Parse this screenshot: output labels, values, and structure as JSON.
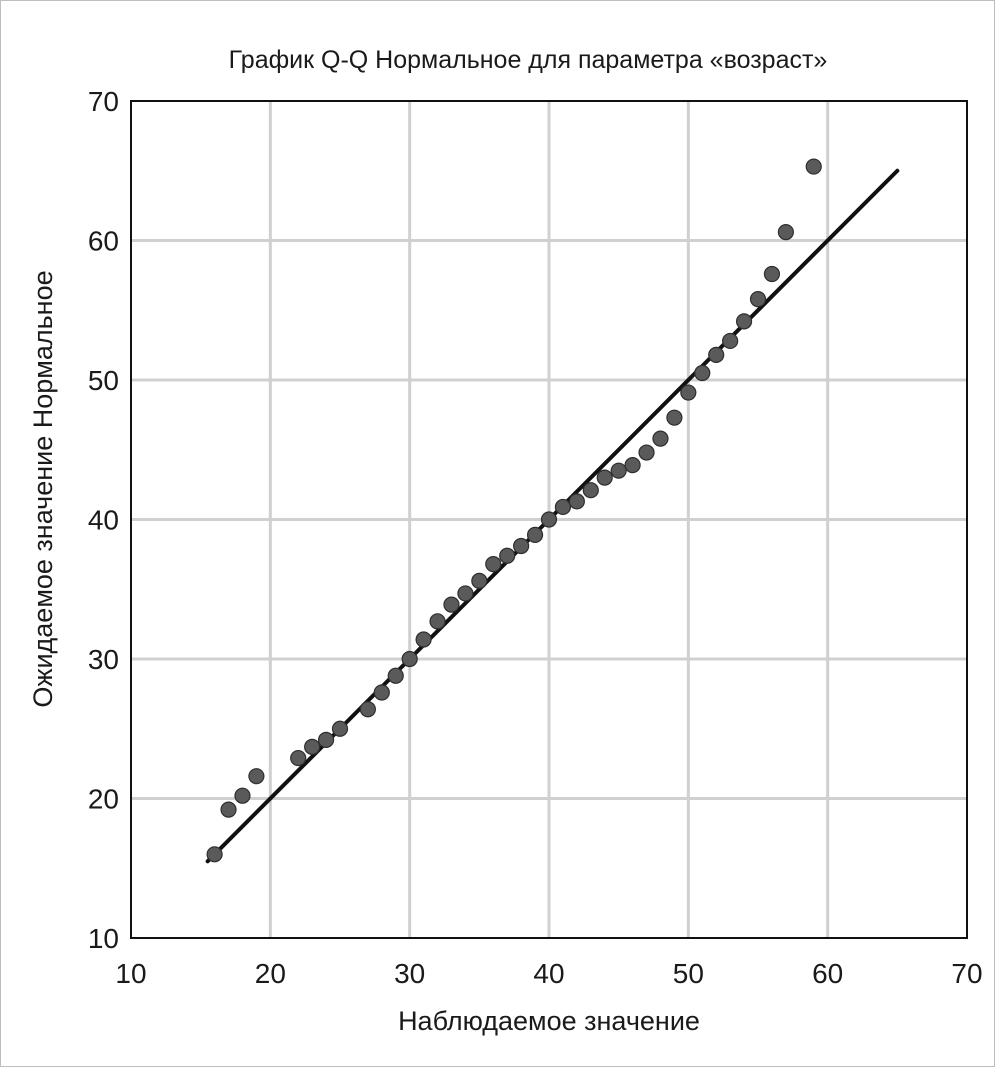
{
  "chart_data": {
    "type": "scatter",
    "title": "График Q-Q Нормальное для параметра «возраст»",
    "xlabel": "Наблюдаемое значение",
    "ylabel": "Ожидаемое значение Нормальное",
    "xlim": [
      10,
      70
    ],
    "ylim": [
      10,
      70
    ],
    "xticks": [
      "10",
      "20",
      "30",
      "40",
      "50",
      "60",
      "70"
    ],
    "yticks": [
      "10",
      "20",
      "30",
      "40",
      "50",
      "60",
      "70"
    ],
    "grid": true,
    "series": [
      {
        "kind": "points",
        "x": [
          16,
          17,
          18,
          19,
          22,
          23,
          24,
          25,
          27,
          28,
          29,
          30,
          31,
          32,
          33,
          34,
          35,
          36,
          37,
          38,
          39,
          40,
          41,
          42,
          43,
          44,
          45,
          46,
          47,
          48,
          49,
          50,
          51,
          52,
          53,
          54,
          55,
          56,
          57,
          59
        ],
        "y": [
          16.0,
          19.2,
          20.2,
          21.6,
          22.9,
          23.7,
          24.2,
          25.0,
          26.4,
          27.6,
          28.8,
          30.0,
          31.4,
          32.7,
          33.9,
          34.7,
          35.6,
          36.8,
          37.4,
          38.1,
          38.9,
          40.0,
          40.9,
          41.3,
          42.1,
          43.0,
          43.5,
          43.9,
          44.8,
          45.8,
          47.3,
          49.1,
          50.5,
          51.8,
          52.8,
          54.2,
          55.8,
          57.6,
          60.6,
          65.3
        ],
        "color": "#5a5a5a"
      },
      {
        "kind": "reference-line",
        "x": [
          15.5,
          65
        ],
        "y": [
          15.5,
          65
        ],
        "color": "#111111"
      }
    ]
  }
}
